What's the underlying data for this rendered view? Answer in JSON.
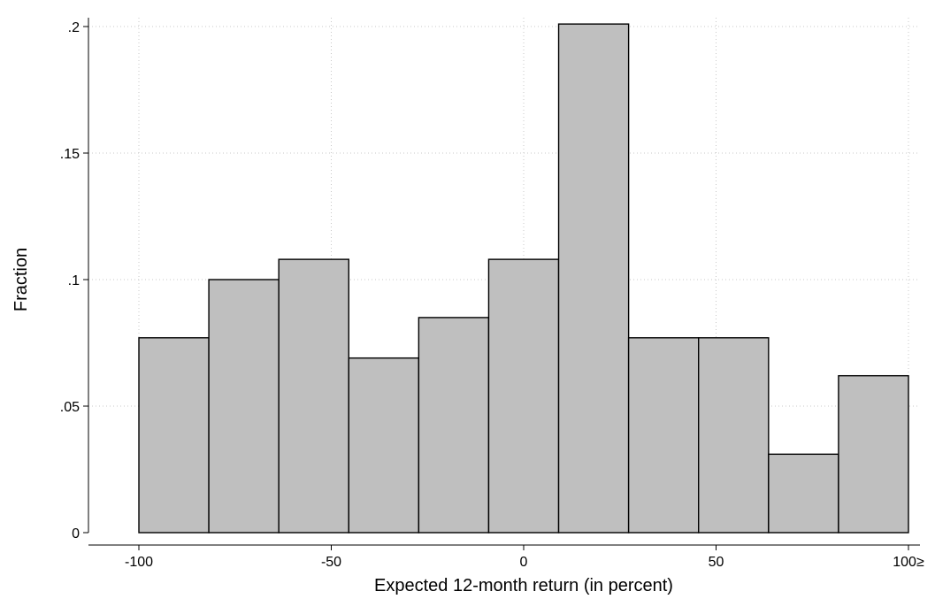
{
  "chart_data": {
    "type": "bar",
    "title": "",
    "xlabel": "Expected 12-month return (in percent)",
    "ylabel": "Fraction",
    "xlim": [
      -100,
      100
    ],
    "ylim": [
      0,
      0.2
    ],
    "bin_edges": [
      -100,
      -81.82,
      -63.64,
      -45.45,
      -27.27,
      -9.09,
      9.09,
      27.27,
      45.45,
      63.64,
      81.82,
      100
    ],
    "values": [
      0.077,
      0.1,
      0.108,
      0.069,
      0.085,
      0.108,
      0.201,
      0.077,
      0.077,
      0.031,
      0.062
    ],
    "x_ticks": [
      {
        "value": -100,
        "label": "-100"
      },
      {
        "value": -50,
        "label": "-50"
      },
      {
        "value": 0,
        "label": "0"
      },
      {
        "value": 50,
        "label": "50"
      },
      {
        "value": 100,
        "label": "100≥"
      }
    ],
    "y_ticks": [
      {
        "value": 0,
        "label": "0"
      },
      {
        "value": 0.05,
        "label": ".05"
      },
      {
        "value": 0.1,
        "label": ".1"
      },
      {
        "value": 0.15,
        "label": ".15"
      },
      {
        "value": 0.2,
        "label": ".2"
      }
    ],
    "grid": true,
    "legend": "none",
    "bar_color": "#bfbfbf",
    "bar_edge_color": "#000000"
  }
}
